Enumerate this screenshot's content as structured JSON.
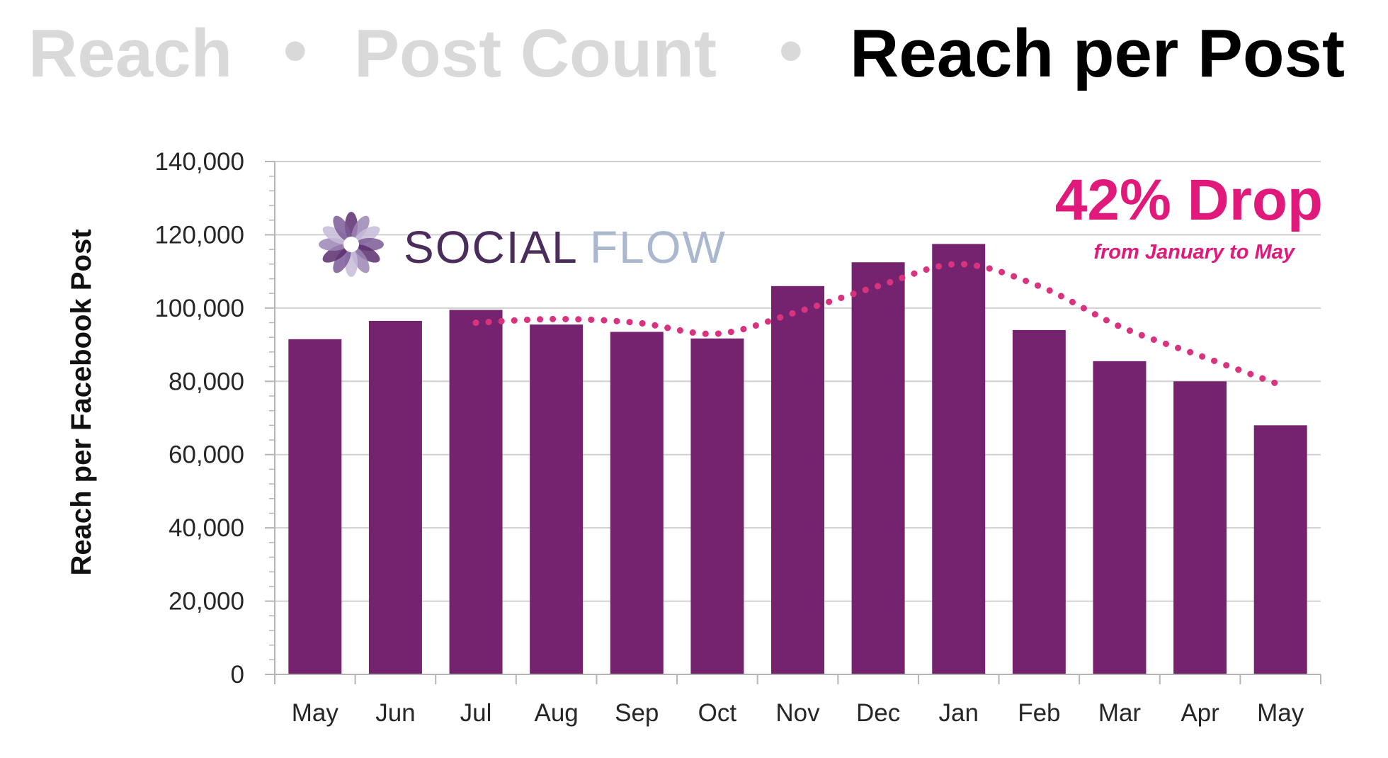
{
  "header": {
    "tabs": [
      {
        "label": "Reach",
        "active": false
      },
      {
        "label": "Post Count",
        "active": false
      },
      {
        "label": "Reach per Post",
        "active": true
      }
    ],
    "separator": "•",
    "inactive_color": "#d9d9d9",
    "active_color": "#000000"
  },
  "logo": {
    "name_part1": "SOCIAL",
    "name_part2": "FLOW",
    "color_part1": "#4b2d5c",
    "color_part2": "#a9b8cf"
  },
  "annotation": {
    "headline": "42% Drop",
    "subtext": "from January to May",
    "color": "#e0197b"
  },
  "colors": {
    "bar": "#76236f",
    "trendline": "#d9337f",
    "grid": "#d0d0d0",
    "axis": "#b5b5b5"
  },
  "chart_data": {
    "type": "bar",
    "categories": [
      "May",
      "Jun",
      "Jul",
      "Aug",
      "Sep",
      "Oct",
      "Nov",
      "Dec",
      "Jan",
      "Feb",
      "Mar",
      "Apr",
      "May"
    ],
    "series": [
      {
        "values": [
          91500,
          96500,
          99500,
          95500,
          93500,
          91700,
          106000,
          112500,
          117500,
          94000,
          85500,
          80000,
          68000
        ]
      }
    ],
    "trendline": {
      "style": "dotted",
      "from_category_index": 2,
      "to_category_index": 12,
      "values": [
        96000,
        97000,
        96000,
        93000,
        99000,
        106000,
        112000,
        106000,
        95000,
        87000,
        79000
      ]
    },
    "title": "",
    "xlabel": "",
    "ylabel": "Reach per Facebook Post",
    "ylim": [
      0,
      140000
    ],
    "yticks": [
      0,
      20000,
      40000,
      60000,
      80000,
      100000,
      120000,
      140000
    ],
    "ytick_labels": [
      "0",
      "20,000",
      "40,000",
      "60,000",
      "80,000",
      "100,000",
      "120,000",
      "140,000"
    ],
    "grid": true,
    "legend": "none"
  }
}
